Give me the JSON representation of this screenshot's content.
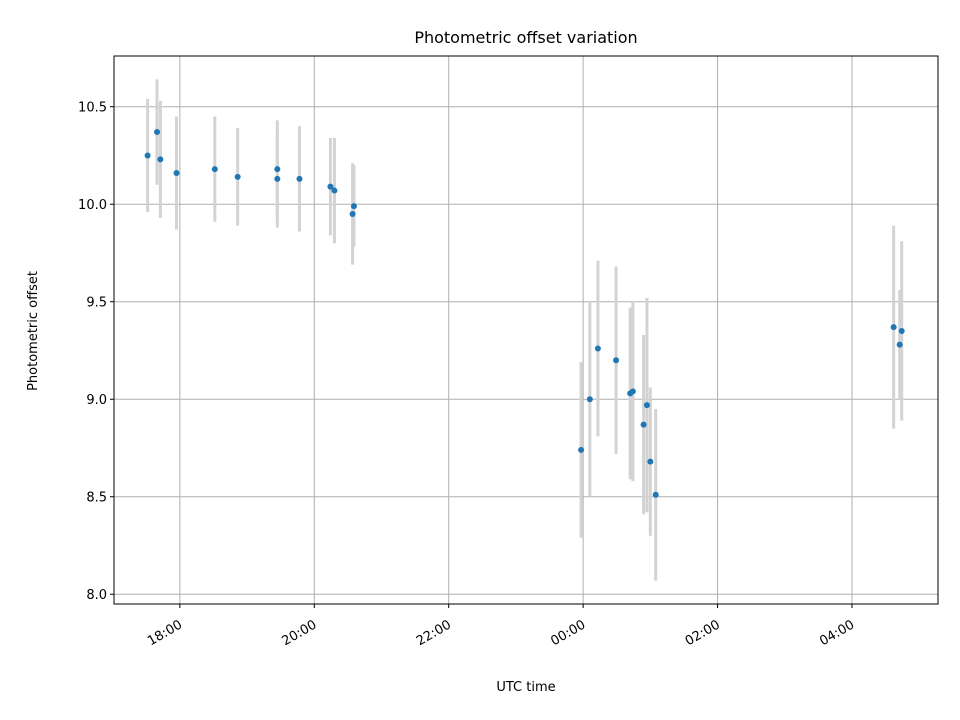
{
  "chart_data": {
    "type": "scatter",
    "title": "Photometric offset variation",
    "xlabel": "UTC time",
    "ylabel": "Photometric offset",
    "x_unit": "hours since 00:00 on first day",
    "xlim": [
      17.02,
      29.28
    ],
    "ylim": [
      7.95,
      10.76
    ],
    "grid": true,
    "x_ticks": [
      {
        "value": 18,
        "label": "18:00"
      },
      {
        "value": 20,
        "label": "20:00"
      },
      {
        "value": 22,
        "label": "22:00"
      },
      {
        "value": 24,
        "label": "00:00"
      },
      {
        "value": 26,
        "label": "02:00"
      },
      {
        "value": 28,
        "label": "04:00"
      }
    ],
    "y_ticks": [
      {
        "value": 8.0,
        "label": "8.0"
      },
      {
        "value": 8.5,
        "label": "8.5"
      },
      {
        "value": 9.0,
        "label": "9.0"
      },
      {
        "value": 9.5,
        "label": "9.5"
      },
      {
        "value": 10.0,
        "label": "10.0"
      },
      {
        "value": 10.5,
        "label": "10.5"
      }
    ],
    "colors": {
      "point": "#1f77b4",
      "error_bar": "#d3d3d3",
      "grid": "#b0b0b0"
    },
    "series": [
      {
        "name": "offset",
        "points": [
          {
            "x": 17.52,
            "y": 10.25,
            "err": 0.29
          },
          {
            "x": 17.66,
            "y": 10.37,
            "err": 0.27
          },
          {
            "x": 17.71,
            "y": 10.23,
            "err": 0.3
          },
          {
            "x": 17.95,
            "y": 10.16,
            "err": 0.29
          },
          {
            "x": 18.52,
            "y": 10.18,
            "err": 0.27
          },
          {
            "x": 18.86,
            "y": 10.14,
            "err": 0.25
          },
          {
            "x": 19.45,
            "y": 10.18,
            "err": 0.25
          },
          {
            "x": 19.45,
            "y": 10.13,
            "err": 0.25
          },
          {
            "x": 19.78,
            "y": 10.13,
            "err": 0.27
          },
          {
            "x": 20.24,
            "y": 10.09,
            "err": 0.25
          },
          {
            "x": 20.3,
            "y": 10.07,
            "err": 0.27
          },
          {
            "x": 20.57,
            "y": 9.95,
            "err": 0.26
          },
          {
            "x": 20.59,
            "y": 9.99,
            "err": 0.21
          },
          {
            "x": 23.97,
            "y": 8.74,
            "err": 0.45
          },
          {
            "x": 24.1,
            "y": 9.0,
            "err": 0.5
          },
          {
            "x": 24.22,
            "y": 9.26,
            "err": 0.45
          },
          {
            "x": 24.49,
            "y": 9.2,
            "err": 0.48
          },
          {
            "x": 24.7,
            "y": 9.03,
            "err": 0.44
          },
          {
            "x": 24.74,
            "y": 9.04,
            "err": 0.46
          },
          {
            "x": 24.9,
            "y": 8.87,
            "err": 0.46
          },
          {
            "x": 24.95,
            "y": 8.97,
            "err": 0.55
          },
          {
            "x": 25.0,
            "y": 8.68,
            "err": 0.38
          },
          {
            "x": 25.08,
            "y": 8.51,
            "err": 0.44
          },
          {
            "x": 28.62,
            "y": 9.37,
            "err": 0.52
          },
          {
            "x": 28.71,
            "y": 9.28,
            "err": 0.28
          },
          {
            "x": 28.74,
            "y": 9.35,
            "err": 0.46
          }
        ]
      }
    ]
  }
}
